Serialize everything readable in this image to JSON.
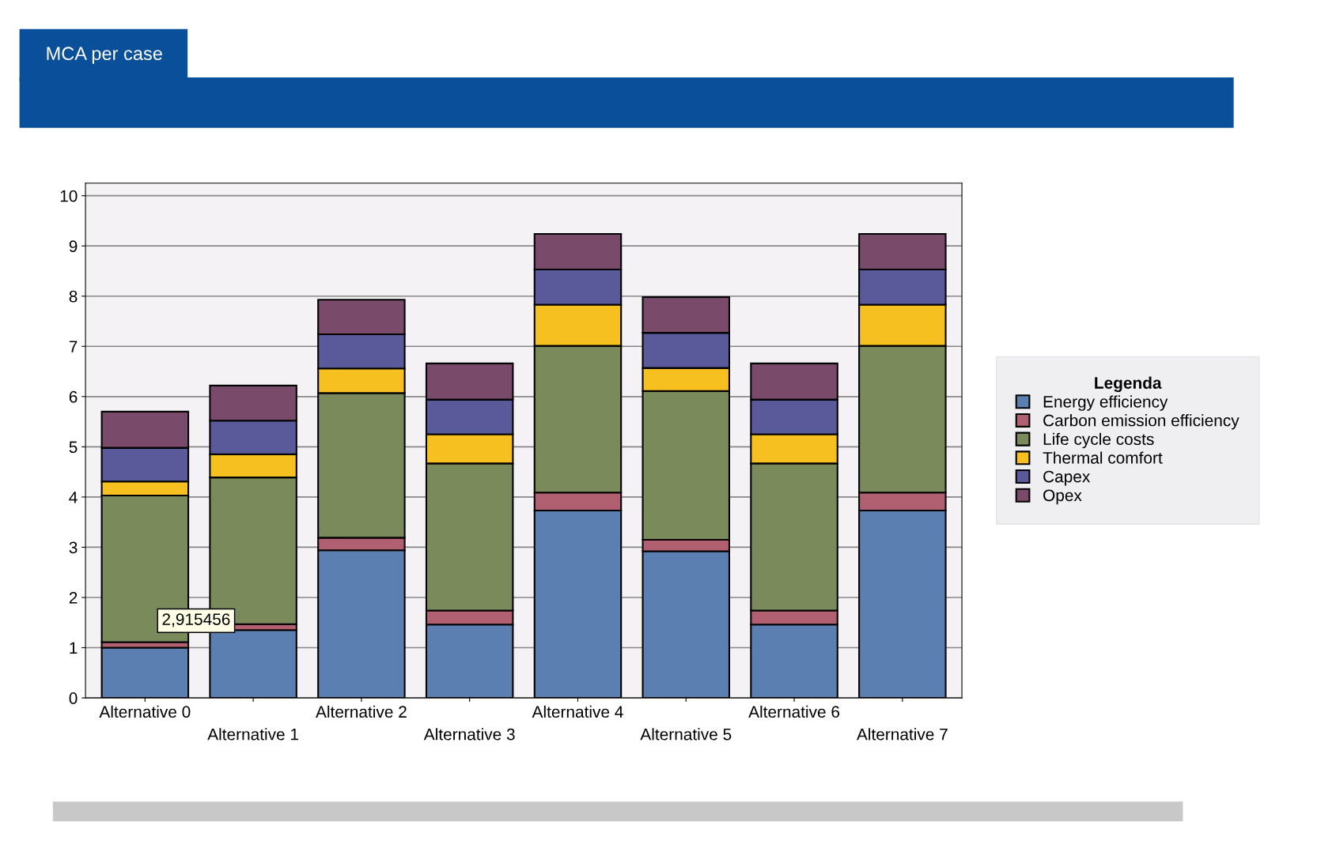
{
  "chart_data": {
    "type": "bar",
    "title": "MCA per case",
    "stacked": true,
    "categories": [
      "Alternative 0",
      "Alternative 1",
      "Alternative 2",
      "Alternative 3",
      "Alternative 4",
      "Alternative 5",
      "Alternative 6",
      "Alternative 7"
    ],
    "series": [
      {
        "name": "Energy efficiency",
        "color": "#5b7fb0",
        "values": [
          1.0,
          1.35,
          2.94,
          1.46,
          3.73,
          2.92,
          1.46,
          3.73
        ]
      },
      {
        "name": "Carbon emission efficiency",
        "color": "#b06070",
        "values": [
          0.11,
          0.12,
          0.25,
          0.28,
          0.36,
          0.23,
          0.28,
          0.36
        ]
      },
      {
        "name": "Life cycle costs",
        "color": "#7a8a5a",
        "values": [
          2.92,
          2.92,
          2.88,
          2.93,
          2.92,
          2.96,
          2.93,
          2.92
        ]
      },
      {
        "name": "Thermal comfort",
        "color": "#f5c020",
        "values": [
          0.28,
          0.46,
          0.49,
          0.58,
          0.82,
          0.46,
          0.58,
          0.82
        ]
      },
      {
        "name": "Capex",
        "color": "#5a5a9a",
        "values": [
          0.67,
          0.67,
          0.68,
          0.69,
          0.7,
          0.7,
          0.69,
          0.7
        ]
      },
      {
        "name": "Opex",
        "color": "#7a4a6a",
        "values": [
          0.72,
          0.7,
          0.69,
          0.72,
          0.71,
          0.71,
          0.72,
          0.71
        ]
      }
    ],
    "ylim": [
      0,
      10.25
    ],
    "yticks": [
      0,
      1,
      2,
      3,
      4,
      5,
      6,
      7,
      8,
      9,
      10
    ],
    "grid": "y",
    "legend": "right",
    "legend_title": "Legenda",
    "annotations": [
      "2,915456"
    ]
  }
}
